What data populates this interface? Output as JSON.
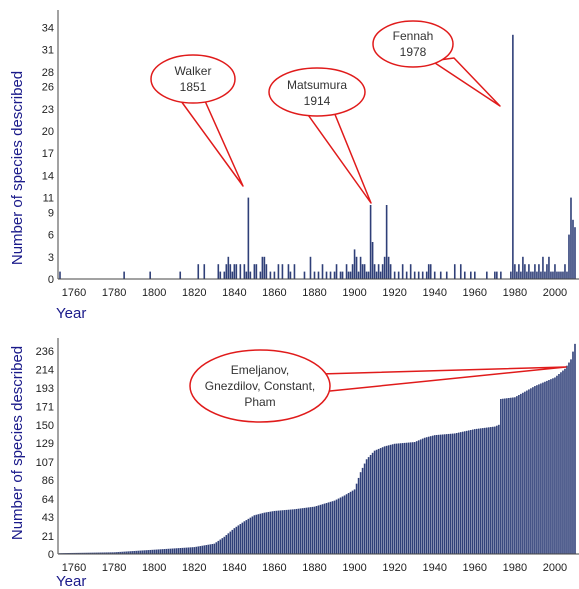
{
  "colors": {
    "bar": "#2f3f78",
    "axis": "#444444",
    "callout": "#e01b1b",
    "label": "#1a1a8a"
  },
  "chart_data": [
    {
      "type": "bar",
      "ylabel": "Number of species described",
      "xlabel": "Year",
      "xlim": [
        1752,
        2012
      ],
      "ylim": [
        0,
        35
      ],
      "xticks": [
        1760,
        1780,
        1800,
        1820,
        1840,
        1860,
        1880,
        1900,
        1920,
        1940,
        1960,
        1980,
        2000
      ],
      "yticks": [
        0,
        3,
        6,
        9,
        11,
        14,
        17,
        20,
        23,
        26,
        28,
        31,
        34
      ],
      "x": [
        1753,
        1785,
        1798,
        1813,
        1822,
        1825,
        1832,
        1833,
        1835,
        1836,
        1837,
        1838,
        1839,
        1840,
        1841,
        1843,
        1845,
        1846,
        1847,
        1848,
        1850,
        1851,
        1853,
        1854,
        1855,
        1856,
        1858,
        1860,
        1862,
        1864,
        1867,
        1868,
        1870,
        1875,
        1878,
        1880,
        1882,
        1884,
        1886,
        1888,
        1890,
        1891,
        1893,
        1894,
        1896,
        1897,
        1898,
        1899,
        1900,
        1901,
        1902,
        1903,
        1904,
        1905,
        1906,
        1907,
        1908,
        1909,
        1910,
        1911,
        1912,
        1913,
        1914,
        1915,
        1916,
        1917,
        1918,
        1920,
        1922,
        1924,
        1926,
        1928,
        1930,
        1932,
        1934,
        1936,
        1937,
        1938,
        1940,
        1943,
        1946,
        1950,
        1953,
        1955,
        1958,
        1960,
        1966,
        1970,
        1971,
        1973,
        1978,
        1979,
        1980,
        1981,
        1982,
        1983,
        1984,
        1985,
        1986,
        1987,
        1988,
        1989,
        1990,
        1991,
        1992,
        1993,
        1994,
        1995,
        1996,
        1997,
        1998,
        1999,
        2000,
        2001,
        2002,
        2003,
        2004,
        2005,
        2006,
        2007,
        2008,
        2009,
        2010
      ],
      "values": [
        1,
        1,
        1,
        1,
        2,
        2,
        2,
        1,
        1,
        2,
        3,
        2,
        1,
        2,
        2,
        2,
        2,
        1,
        11,
        1,
        2,
        2,
        1,
        3,
        3,
        2,
        1,
        1,
        2,
        2,
        2,
        1,
        2,
        1,
        3,
        1,
        1,
        2,
        1,
        1,
        1,
        2,
        1,
        1,
        2,
        1,
        1,
        2,
        4,
        3,
        1,
        3,
        2,
        2,
        1,
        1,
        10,
        5,
        2,
        1,
        2,
        1,
        2,
        3,
        10,
        3,
        2,
        1,
        1,
        2,
        1,
        2,
        1,
        1,
        1,
        1,
        2,
        2,
        1,
        1,
        1,
        2,
        2,
        1,
        1,
        1,
        1,
        1,
        1,
        1,
        1,
        33,
        2,
        1,
        2,
        1,
        3,
        2,
        1,
        2,
        1,
        1,
        2,
        1,
        2,
        1,
        3,
        1,
        2,
        3,
        1,
        1,
        2,
        1,
        1,
        1,
        1,
        2,
        1,
        6,
        11,
        8,
        7
      ]
    },
    {
      "type": "bar",
      "ylabel": "Number of species described",
      "xlabel": "Year",
      "xlim": [
        1752,
        2012
      ],
      "ylim": [
        0,
        245
      ],
      "xticks": [
        1760,
        1780,
        1800,
        1820,
        1840,
        1860,
        1880,
        1900,
        1920,
        1940,
        1960,
        1980,
        2000
      ],
      "yticks": [
        0,
        21,
        43,
        64,
        86,
        107,
        129,
        150,
        171,
        193,
        214,
        236
      ],
      "x_start": 1753,
      "x_end": 2010,
      "keypoints": [
        [
          1753,
          1
        ],
        [
          1780,
          2
        ],
        [
          1800,
          5
        ],
        [
          1820,
          8
        ],
        [
          1830,
          12
        ],
        [
          1835,
          20
        ],
        [
          1840,
          30
        ],
        [
          1845,
          38
        ],
        [
          1850,
          45
        ],
        [
          1855,
          48
        ],
        [
          1860,
          50
        ],
        [
          1870,
          52
        ],
        [
          1880,
          55
        ],
        [
          1890,
          62
        ],
        [
          1895,
          68
        ],
        [
          1900,
          75
        ],
        [
          1903,
          95
        ],
        [
          1906,
          110
        ],
        [
          1910,
          120
        ],
        [
          1915,
          125
        ],
        [
          1920,
          128
        ],
        [
          1930,
          130
        ],
        [
          1935,
          135
        ],
        [
          1940,
          138
        ],
        [
          1950,
          140
        ],
        [
          1960,
          145
        ],
        [
          1970,
          148
        ],
        [
          1972,
          150
        ],
        [
          1973,
          180
        ],
        [
          1980,
          182
        ],
        [
          1990,
          195
        ],
        [
          2000,
          205
        ],
        [
          2005,
          215
        ],
        [
          2008,
          226
        ],
        [
          2010,
          244
        ]
      ]
    }
  ],
  "annotations": [
    {
      "lines": [
        "Walker",
        "1851"
      ]
    },
    {
      "lines": [
        "Matsumura",
        "1914"
      ]
    },
    {
      "lines": [
        "Fennah",
        "1978"
      ]
    },
    {
      "lines": [
        "Emeljanov,",
        "Gnezdilov, Constant,",
        "Pham"
      ]
    }
  ]
}
